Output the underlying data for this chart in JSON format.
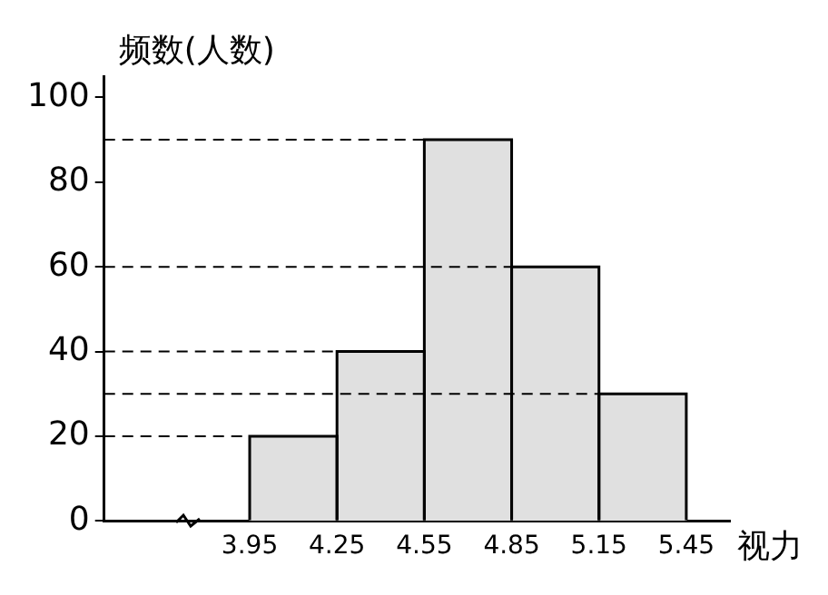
{
  "chart_data": {
    "type": "histogram",
    "xlabel": "视力",
    "ylabel": "频数(人数)",
    "bins": [
      3.95,
      4.25,
      4.55,
      4.85,
      5.15,
      5.45
    ],
    "values": [
      20,
      40,
      90,
      60,
      30
    ],
    "color": "#e0e0e0",
    "xlim": [
      3.45,
      5.6
    ],
    "xticks": [
      3.95,
      4.25,
      4.55,
      4.85,
      5.15,
      5.45
    ],
    "ylim": [
      0,
      105
    ],
    "yticks": [
      0,
      20,
      40,
      60,
      80,
      100
    ],
    "grid": false,
    "legend": false,
    "ref_lines": [
      {
        "axis": "y",
        "value": 20,
        "line_style": "dashed"
      },
      {
        "axis": "y",
        "value": 40,
        "line_style": "dashed"
      },
      {
        "axis": "y",
        "value": 90,
        "line_style": "dashed"
      },
      {
        "axis": "y",
        "value": 60,
        "line_style": "dashed"
      },
      {
        "axis": "y",
        "value": 30,
        "line_style": "dashed"
      }
    ]
  }
}
